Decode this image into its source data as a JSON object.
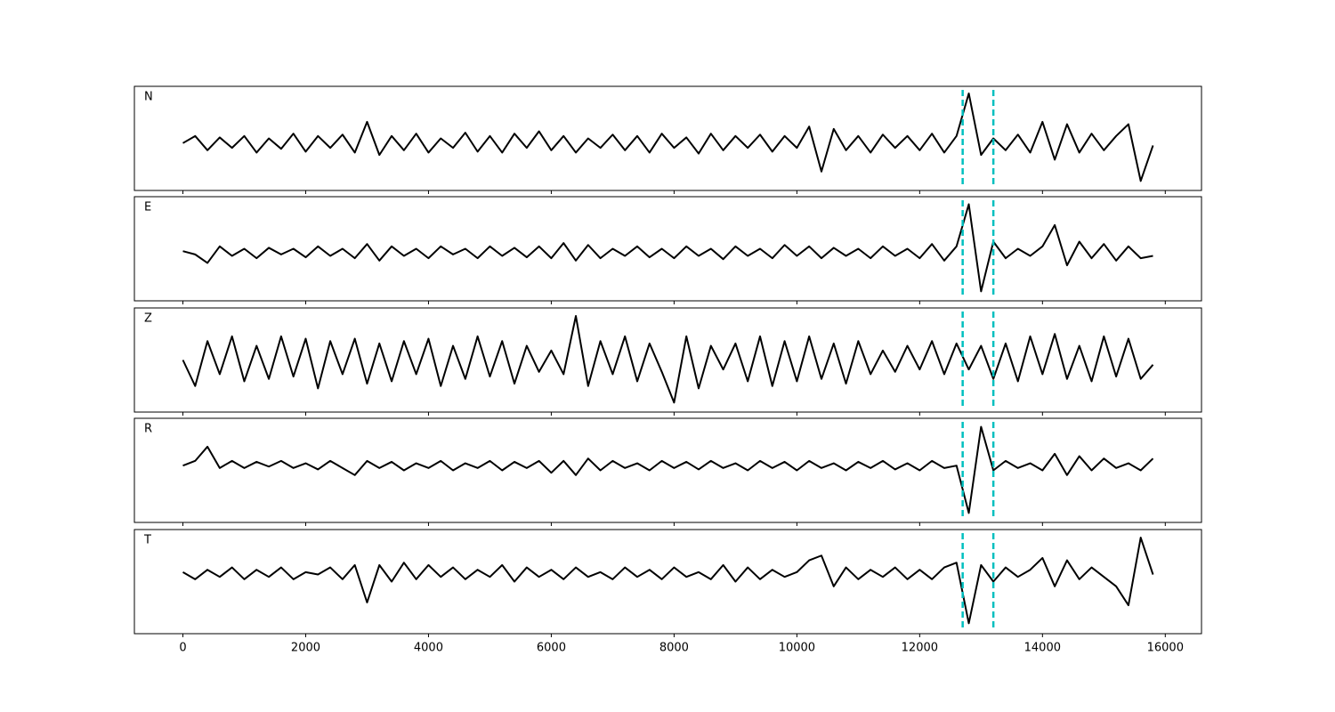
{
  "chart_data": {
    "type": "line",
    "x": [
      0,
      200,
      400,
      600,
      800,
      1000,
      1200,
      1400,
      1600,
      1800,
      2000,
      2200,
      2400,
      2600,
      2800,
      3000,
      3200,
      3400,
      3600,
      3800,
      4000,
      4200,
      4400,
      4600,
      4800,
      5000,
      5200,
      5400,
      5600,
      5800,
      6000,
      6200,
      6400,
      6600,
      6800,
      7000,
      7200,
      7400,
      7600,
      7800,
      8000,
      8200,
      8400,
      8600,
      8800,
      9000,
      9200,
      9400,
      9600,
      9800,
      10000,
      10200,
      10400,
      10600,
      10800,
      11000,
      11200,
      11400,
      11600,
      11800,
      12000,
      12200,
      12400,
      12600,
      12800,
      13000,
      13200,
      13400,
      13600,
      13800,
      14000,
      14200,
      14400,
      14600,
      14800,
      15000,
      15200,
      15400,
      15600,
      15800
    ],
    "series": [
      {
        "name": "N",
        "color": "#000000",
        "values": [
          -0.1,
          0.05,
          -0.25,
          0.02,
          -0.2,
          0.05,
          -0.3,
          0.0,
          -0.22,
          0.1,
          -0.28,
          0.05,
          -0.2,
          0.08,
          -0.3,
          0.35,
          -0.35,
          0.05,
          -0.25,
          0.1,
          -0.3,
          0.0,
          -0.2,
          0.12,
          -0.28,
          0.05,
          -0.3,
          0.1,
          -0.2,
          0.15,
          -0.25,
          0.05,
          -0.3,
          0.0,
          -0.2,
          0.08,
          -0.25,
          0.05,
          -0.3,
          0.1,
          -0.2,
          0.02,
          -0.32,
          0.1,
          -0.25,
          0.05,
          -0.2,
          0.08,
          -0.28,
          0.05,
          -0.2,
          0.25,
          -0.7,
          0.2,
          -0.25,
          0.05,
          -0.3,
          0.08,
          -0.2,
          0.05,
          -0.25,
          0.1,
          -0.3,
          0.05,
          0.95,
          -0.35,
          0.0,
          -0.25,
          0.08,
          -0.3,
          0.35,
          -0.45,
          0.3,
          -0.3,
          0.1,
          -0.25,
          0.05,
          0.3,
          -0.9,
          -0.15
        ]
      },
      {
        "name": "E",
        "color": "#000000",
        "values": [
          -0.05,
          -0.12,
          -0.3,
          0.05,
          -0.15,
          0.0,
          -0.2,
          0.02,
          -0.12,
          0.0,
          -0.18,
          0.05,
          -0.15,
          0.0,
          -0.2,
          0.1,
          -0.25,
          0.05,
          -0.15,
          0.0,
          -0.2,
          0.05,
          -0.12,
          0.0,
          -0.2,
          0.05,
          -0.15,
          0.02,
          -0.18,
          0.05,
          -0.2,
          0.12,
          -0.25,
          0.08,
          -0.2,
          0.0,
          -0.15,
          0.05,
          -0.18,
          0.0,
          -0.2,
          0.05,
          -0.15,
          0.0,
          -0.22,
          0.05,
          -0.15,
          0.0,
          -0.2,
          0.08,
          -0.15,
          0.05,
          -0.2,
          0.02,
          -0.15,
          0.0,
          -0.2,
          0.05,
          -0.15,
          0.0,
          -0.2,
          0.1,
          -0.25,
          0.05,
          0.94,
          -0.9,
          0.15,
          -0.2,
          0.0,
          -0.15,
          0.05,
          0.5,
          -0.35,
          0.15,
          -0.2,
          0.1,
          -0.25,
          0.05,
          -0.2,
          -0.15
        ]
      },
      {
        "name": "Z",
        "color": "#000000",
        "values": [
          0.0,
          -0.55,
          0.4,
          -0.3,
          0.5,
          -0.45,
          0.3,
          -0.4,
          0.5,
          -0.35,
          0.45,
          -0.6,
          0.4,
          -0.3,
          0.45,
          -0.5,
          0.35,
          -0.45,
          0.4,
          -0.3,
          0.45,
          -0.55,
          0.3,
          -0.4,
          0.5,
          -0.35,
          0.4,
          -0.5,
          0.3,
          -0.25,
          0.2,
          -0.3,
          0.93,
          -0.55,
          0.4,
          -0.3,
          0.5,
          -0.45,
          0.35,
          -0.25,
          -0.9,
          0.5,
          -0.6,
          0.3,
          -0.2,
          0.35,
          -0.45,
          0.5,
          -0.55,
          0.4,
          -0.45,
          0.5,
          -0.4,
          0.35,
          -0.5,
          0.4,
          -0.3,
          0.2,
          -0.25,
          0.3,
          -0.2,
          0.4,
          -0.3,
          0.35,
          -0.2,
          0.3,
          -0.4,
          0.35,
          -0.45,
          0.5,
          -0.3,
          0.55,
          -0.4,
          0.3,
          -0.45,
          0.5,
          -0.35,
          0.45,
          -0.4,
          -0.1
        ]
      },
      {
        "name": "R",
        "color": "#000000",
        "values": [
          0.1,
          0.2,
          0.5,
          0.05,
          0.2,
          0.05,
          0.18,
          0.08,
          0.2,
          0.05,
          0.15,
          0.02,
          0.2,
          0.05,
          -0.1,
          0.2,
          0.05,
          0.18,
          0.0,
          0.15,
          0.05,
          0.2,
          0.0,
          0.15,
          0.05,
          0.2,
          0.0,
          0.18,
          0.05,
          0.2,
          -0.05,
          0.2,
          -0.1,
          0.25,
          0.0,
          0.2,
          0.05,
          0.15,
          0.0,
          0.2,
          0.05,
          0.18,
          0.02,
          0.2,
          0.05,
          0.15,
          0.0,
          0.2,
          0.05,
          0.18,
          0.0,
          0.2,
          0.05,
          0.15,
          0.0,
          0.18,
          0.05,
          0.2,
          0.02,
          0.15,
          0.0,
          0.2,
          0.05,
          0.1,
          -0.9,
          0.92,
          0.0,
          0.2,
          0.05,
          0.15,
          0.0,
          0.35,
          -0.1,
          0.3,
          0.0,
          0.25,
          0.05,
          0.15,
          0.0,
          0.25
        ]
      },
      {
        "name": "T",
        "color": "#000000",
        "values": [
          0.2,
          0.05,
          0.25,
          0.1,
          0.3,
          0.05,
          0.25,
          0.1,
          0.3,
          0.05,
          0.2,
          0.15,
          0.3,
          0.05,
          0.35,
          -0.44,
          0.35,
          0.0,
          0.4,
          0.05,
          0.35,
          0.1,
          0.3,
          0.05,
          0.25,
          0.1,
          0.35,
          0.0,
          0.3,
          0.1,
          0.25,
          0.05,
          0.3,
          0.1,
          0.2,
          0.05,
          0.3,
          0.1,
          0.25,
          0.05,
          0.3,
          0.1,
          0.2,
          0.05,
          0.35,
          0.0,
          0.3,
          0.05,
          0.25,
          0.1,
          0.2,
          0.45,
          0.55,
          -0.1,
          0.3,
          0.05,
          0.25,
          0.1,
          0.3,
          0.05,
          0.25,
          0.05,
          0.3,
          0.4,
          -0.88,
          0.35,
          0.0,
          0.3,
          0.1,
          0.25,
          0.5,
          -0.1,
          0.45,
          0.05,
          0.3,
          0.1,
          -0.1,
          -0.5,
          0.93,
          0.15
        ]
      }
    ],
    "xlim": [
      -790,
      16590
    ],
    "ylim": [
      -1.1,
      1.1
    ],
    "xticks": [
      0,
      2000,
      4000,
      6000,
      8000,
      10000,
      12000,
      14000,
      16000
    ],
    "vlines": [
      12700,
      13200
    ],
    "vline_color": "#00bfbf"
  }
}
